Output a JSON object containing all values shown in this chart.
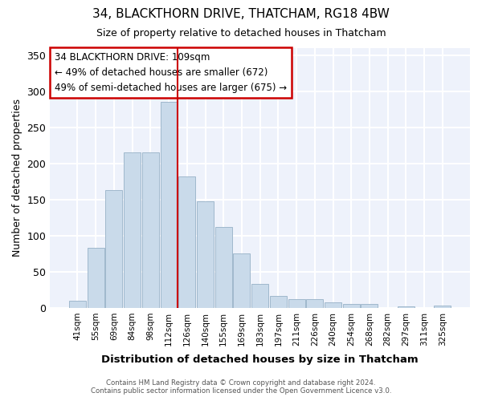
{
  "title1": "34, BLACKTHORN DRIVE, THATCHAM, RG18 4BW",
  "title2": "Size of property relative to detached houses in Thatcham",
  "xlabel": "Distribution of detached houses by size in Thatcham",
  "ylabel": "Number of detached properties",
  "categories": [
    "41sqm",
    "55sqm",
    "69sqm",
    "84sqm",
    "98sqm",
    "112sqm",
    "126sqm",
    "140sqm",
    "155sqm",
    "169sqm",
    "183sqm",
    "197sqm",
    "211sqm",
    "226sqm",
    "240sqm",
    "254sqm",
    "268sqm",
    "282sqm",
    "297sqm",
    "311sqm",
    "325sqm"
  ],
  "values": [
    10,
    83,
    163,
    215,
    215,
    285,
    182,
    148,
    112,
    75,
    33,
    17,
    12,
    12,
    8,
    5,
    5,
    0,
    2,
    0,
    3
  ],
  "bar_color": "#c9daea",
  "bar_edge_color": "#a0b8cc",
  "vline_x_idx": 5,
  "vline_color": "#cc0000",
  "annotation_lines": [
    "34 BLACKTHORN DRIVE: 109sqm",
    "← 49% of detached houses are smaller (672)",
    "49% of semi-detached houses are larger (675) →"
  ],
  "annotation_box_color": "white",
  "annotation_box_edge": "#cc0000",
  "ylim": [
    0,
    360
  ],
  "yticks": [
    0,
    50,
    100,
    150,
    200,
    250,
    300,
    350
  ],
  "bg_color": "#eef2fb",
  "grid_color": "white",
  "footer1": "Contains HM Land Registry data © Crown copyright and database right 2024.",
  "footer2": "Contains public sector information licensed under the Open Government Licence v3.0."
}
